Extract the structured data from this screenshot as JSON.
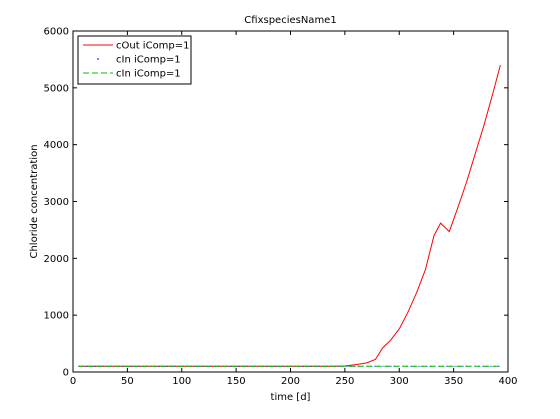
{
  "chart_data": {
    "type": "line",
    "title": "CfixspeciesName1",
    "xlabel": "time [d]",
    "ylabel": "Chloride concentration",
    "xlim": [
      0,
      400
    ],
    "ylim": [
      0,
      6000
    ],
    "xticks": [
      0,
      50,
      100,
      150,
      200,
      250,
      300,
      350,
      400
    ],
    "yticks": [
      0,
      1000,
      2000,
      3000,
      4000,
      5000,
      6000
    ],
    "grid": false,
    "legend_position": "top-left",
    "series": [
      {
        "name": "cOut iComp=1",
        "color": "#ff0000",
        "style": "solid",
        "x": [
          5,
          50,
          100,
          150,
          200,
          240,
          250,
          260,
          270,
          278,
          285,
          292,
          300,
          308,
          316,
          324,
          332,
          338,
          346,
          354,
          362,
          370,
          378,
          386,
          393
        ],
        "y": [
          100,
          100,
          100,
          100,
          100,
          100,
          105,
          130,
          160,
          220,
          430,
          560,
          760,
          1050,
          1400,
          1800,
          2400,
          2620,
          2470,
          2900,
          3350,
          3850,
          4350,
          4900,
          5400
        ]
      },
      {
        "name": "cIn iComp=1",
        "color": "#0000ff",
        "style": "dotted",
        "x": [
          5,
          50,
          100,
          150,
          200,
          250,
          300,
          350,
          393
        ],
        "y": [
          100,
          100,
          100,
          100,
          100,
          100,
          100,
          100,
          100
        ]
      },
      {
        "name": "cIn iComp=1",
        "color": "#00bb00",
        "style": "dashed",
        "x": [
          5,
          50,
          100,
          150,
          200,
          250,
          300,
          350,
          393
        ],
        "y": [
          100,
          100,
          100,
          100,
          100,
          100,
          100,
          100,
          100
        ]
      }
    ]
  }
}
